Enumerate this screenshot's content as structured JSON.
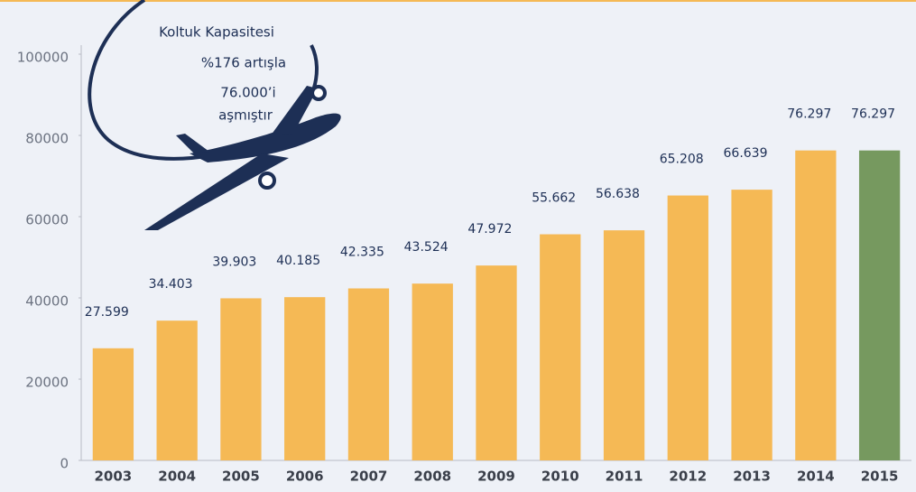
{
  "chart_data": {
    "type": "bar",
    "annotation": [
      "Koltuk Kapasitesi",
      "%176 artışla",
      "76.000’i",
      "aşmıştır"
    ],
    "categories": [
      "2003",
      "2004",
      "2005",
      "2006",
      "2007",
      "2008",
      "2009",
      "2010",
      "2011",
      "2012",
      "2013",
      "2014",
      "2015"
    ],
    "values": [
      27599,
      34403,
      39903,
      40185,
      42335,
      43524,
      47972,
      55662,
      56638,
      65208,
      66639,
      76297,
      76297
    ],
    "value_labels": [
      "27.599",
      "34.403",
      "39.903",
      "40.185",
      "42.335",
      "43.524",
      "47.972",
      "55.662",
      "56.638",
      "65.208",
      "66.639",
      "76.297",
      "76.297"
    ],
    "colors": [
      "#f5b955",
      "#f5b955",
      "#f5b955",
      "#f5b955",
      "#f5b955",
      "#f5b955",
      "#f5b955",
      "#f5b955",
      "#f5b955",
      "#f5b955",
      "#f5b955",
      "#f5b955",
      "#76995f"
    ],
    "ylim": [
      0,
      100000
    ],
    "yticks": [
      0,
      20000,
      40000,
      60000,
      80000,
      100000
    ],
    "grid": false
  }
}
